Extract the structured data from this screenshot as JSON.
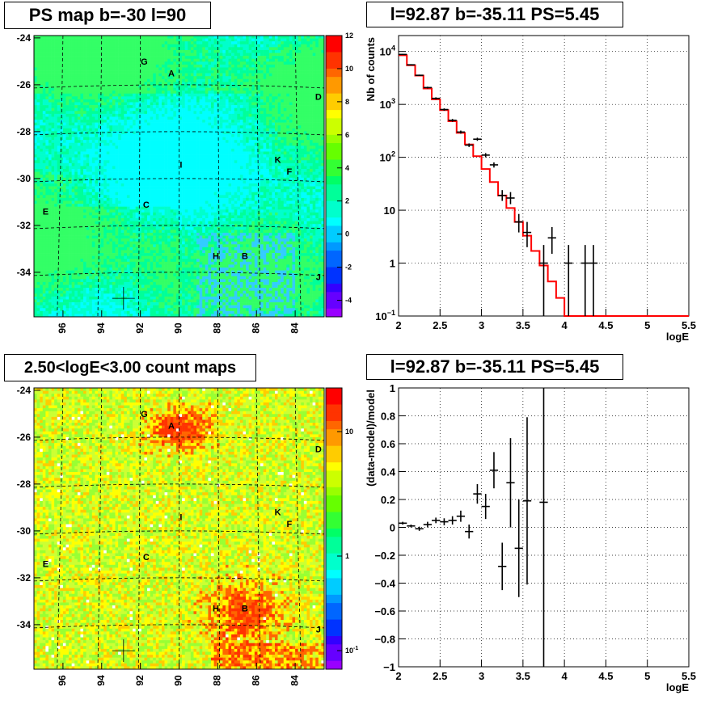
{
  "chart_data": [
    {
      "type": "heatmap",
      "title": "PS map b=-30 l=90",
      "x_ticks": [
        "96",
        "94",
        "92",
        "90",
        "88",
        "86",
        "84"
      ],
      "y_ticks": [
        "-24",
        "-26",
        "-28",
        "-30",
        "-32",
        "-34"
      ],
      "xlim": [
        97.5,
        82.5
      ],
      "ylim": [
        -35.9,
        -23.9
      ],
      "colorbar": {
        "min": -5,
        "max": 12,
        "ticks": [
          "-4",
          "-2",
          "0",
          "2",
          "4",
          "6",
          "8",
          "10",
          "12"
        ]
      },
      "sources": [
        {
          "label": "G",
          "l": 91.8,
          "b": -25.0
        },
        {
          "label": "A",
          "l": 90.4,
          "b": -25.5
        },
        {
          "label": "D",
          "l": 82.8,
          "b": -26.5
        },
        {
          "label": "K",
          "l": 84.9,
          "b": -29.2
        },
        {
          "label": "F",
          "l": 84.3,
          "b": -29.7
        },
        {
          "label": "I",
          "l": 89.9,
          "b": -29.4
        },
        {
          "label": "C",
          "l": 91.7,
          "b": -31.1
        },
        {
          "label": "E",
          "l": 96.9,
          "b": -31.4
        },
        {
          "label": "H",
          "l": 88.1,
          "b": -33.3
        },
        {
          "label": "B",
          "l": 86.6,
          "b": -33.3
        },
        {
          "label": "J",
          "l": 82.8,
          "b": -34.2
        }
      ],
      "marker": {
        "l": 92.87,
        "b": -35.11
      }
    },
    {
      "type": "line",
      "title": "l=92.87 b=-35.11 PS=5.45",
      "xlabel": "logE",
      "ylabel": "Nb of counts",
      "xlim": [
        2,
        5.5
      ],
      "ylim": [
        0.1,
        20000
      ],
      "yscale": "log",
      "grid": true,
      "x_ticks": [
        "2",
        "2.5",
        "3",
        "3.5",
        "4",
        "4.5",
        "5",
        "5.5"
      ],
      "y_ticks": [
        {
          "value": 0.1,
          "base": "10",
          "exp": "−1"
        },
        {
          "value": 1,
          "base": "1",
          "exp": ""
        },
        {
          "value": 10,
          "base": "10",
          "exp": ""
        },
        {
          "value": 100,
          "base": "10",
          "exp": "2"
        },
        {
          "value": 1000,
          "base": "10",
          "exp": "3"
        },
        {
          "value": 10000,
          "base": "10",
          "exp": "4"
        }
      ],
      "model_bins": [
        2.0,
        2.1,
        2.2,
        2.3,
        2.4,
        2.5,
        2.6,
        2.7,
        2.8,
        2.9,
        3.0,
        3.1,
        3.2,
        3.3,
        3.4,
        3.5,
        3.6,
        3.7,
        3.8,
        3.9,
        4.0,
        4.1,
        4.2,
        4.3,
        4.4,
        4.5,
        4.6,
        4.7,
        4.8,
        4.9,
        5.0,
        5.1,
        5.2,
        5.3,
        5.4,
        5.5
      ],
      "model_values": [
        8500,
        5500,
        3500,
        2000,
        1250,
        780,
        480,
        290,
        175,
        105,
        60,
        34,
        19,
        11,
        6,
        3.3,
        1.7,
        0.9,
        0.45,
        0.22,
        0.1,
        0.1,
        0.1,
        0.1,
        0.1,
        0.1,
        0.1,
        0.1,
        0.1,
        0.1,
        0.1,
        0.1,
        0.1,
        0.1,
        0.1
      ],
      "data_points": [
        {
          "x": 2.05,
          "y": 8800,
          "lo": 8600,
          "hi": 9000
        },
        {
          "x": 2.15,
          "y": 5600,
          "lo": 5450,
          "hi": 5750
        },
        {
          "x": 2.25,
          "y": 3550,
          "lo": 3450,
          "hi": 3650
        },
        {
          "x": 2.35,
          "y": 2080,
          "lo": 2000,
          "hi": 2160
        },
        {
          "x": 2.45,
          "y": 1300,
          "lo": 1240,
          "hi": 1360
        },
        {
          "x": 2.55,
          "y": 800,
          "lo": 760,
          "hi": 840
        },
        {
          "x": 2.65,
          "y": 500,
          "lo": 470,
          "hi": 530
        },
        {
          "x": 2.75,
          "y": 300,
          "lo": 280,
          "hi": 320
        },
        {
          "x": 2.85,
          "y": 170,
          "lo": 157,
          "hi": 183
        },
        {
          "x": 2.95,
          "y": 220,
          "lo": 205,
          "hi": 235
        },
        {
          "x": 3.05,
          "y": 110,
          "lo": 100,
          "hi": 120
        },
        {
          "x": 3.15,
          "y": 72,
          "lo": 64,
          "hi": 80
        },
        {
          "x": 3.25,
          "y": 19,
          "lo": 15,
          "hi": 24
        },
        {
          "x": 3.35,
          "y": 17,
          "lo": 13,
          "hi": 22
        },
        {
          "x": 3.45,
          "y": 6,
          "lo": 3.8,
          "hi": 8.5
        },
        {
          "x": 3.55,
          "y": 3.8,
          "lo": 2.0,
          "hi": 6.0
        },
        {
          "x": 3.75,
          "y": 1.0,
          "lo": 0.1,
          "hi": 2.2
        },
        {
          "x": 3.85,
          "y": 3.0,
          "lo": 1.5,
          "hi": 4.8
        },
        {
          "x": 4.05,
          "y": 1.0,
          "lo": 0.1,
          "hi": 2.2
        },
        {
          "x": 4.25,
          "y": 1.0,
          "lo": 0.1,
          "hi": 2.2
        },
        {
          "x": 4.35,
          "y": 1.0,
          "lo": 0.1,
          "hi": 2.2
        }
      ]
    },
    {
      "type": "heatmap",
      "title": "2.50<logE<3.00 count maps",
      "x_ticks": [
        "96",
        "94",
        "92",
        "90",
        "88",
        "86",
        "84"
      ],
      "y_ticks": [
        "-24",
        "-26",
        "-28",
        "-30",
        "-32",
        "-34"
      ],
      "xlim": [
        97.5,
        82.5
      ],
      "ylim": [
        -35.9,
        -23.9
      ],
      "colorbar": {
        "scale": "log",
        "ticks": [
          "10",
          "1",
          "10"
        ],
        "tick_exps": [
          "",
          "",
          "-1"
        ]
      },
      "sources": [
        {
          "label": "G",
          "l": 91.8,
          "b": -25.0
        },
        {
          "label": "A",
          "l": 90.4,
          "b": -25.5
        },
        {
          "label": "D",
          "l": 82.8,
          "b": -26.5
        },
        {
          "label": "K",
          "l": 84.9,
          "b": -29.2
        },
        {
          "label": "F",
          "l": 84.3,
          "b": -29.7
        },
        {
          "label": "I",
          "l": 89.9,
          "b": -29.4
        },
        {
          "label": "C",
          "l": 91.7,
          "b": -31.1
        },
        {
          "label": "E",
          "l": 96.9,
          "b": -31.4
        },
        {
          "label": "H",
          "l": 88.1,
          "b": -33.3
        },
        {
          "label": "B",
          "l": 86.6,
          "b": -33.3
        },
        {
          "label": "J",
          "l": 82.8,
          "b": -34.2
        }
      ],
      "marker": {
        "l": 92.87,
        "b": -35.11
      }
    },
    {
      "type": "scatter",
      "title": "l=92.87 b=-35.11 PS=5.45",
      "xlabel": "logE",
      "ylabel": "(data-model)/model",
      "xlim": [
        2,
        5.5
      ],
      "ylim": [
        -1,
        1
      ],
      "grid": true,
      "x_ticks": [
        "2",
        "2.5",
        "3",
        "3.5",
        "4",
        "4.5",
        "5",
        "5.5"
      ],
      "y_ticks": [
        "−1",
        "−0.8",
        "−0.6",
        "−0.4",
        "−0.2",
        "0",
        "0.2",
        "0.4",
        "0.6",
        "0.8",
        "1"
      ],
      "data_points": [
        {
          "x": 2.05,
          "y": 0.03,
          "err": 0.01
        },
        {
          "x": 2.15,
          "y": 0.01,
          "err": 0.01
        },
        {
          "x": 2.25,
          "y": -0.01,
          "err": 0.015
        },
        {
          "x": 2.35,
          "y": 0.02,
          "err": 0.02
        },
        {
          "x": 2.45,
          "y": 0.05,
          "err": 0.02
        },
        {
          "x": 2.55,
          "y": 0.04,
          "err": 0.025
        },
        {
          "x": 2.65,
          "y": 0.05,
          "err": 0.03
        },
        {
          "x": 2.75,
          "y": 0.08,
          "err": 0.04
        },
        {
          "x": 2.85,
          "y": -0.03,
          "err": 0.05
        },
        {
          "x": 2.95,
          "y": 0.24,
          "err": 0.07
        },
        {
          "x": 3.05,
          "y": 0.15,
          "err": 0.09
        },
        {
          "x": 3.15,
          "y": 0.41,
          "err": 0.13
        },
        {
          "x": 3.25,
          "y": -0.28,
          "err": 0.17
        },
        {
          "x": 3.35,
          "y": 0.32,
          "err": 0.32
        },
        {
          "x": 3.45,
          "y": -0.15,
          "err": 0.35
        },
        {
          "x": 3.55,
          "y": 0.19,
          "err": 0.6
        },
        {
          "x": 3.75,
          "y": 0.18,
          "err": 1.2
        }
      ]
    }
  ]
}
